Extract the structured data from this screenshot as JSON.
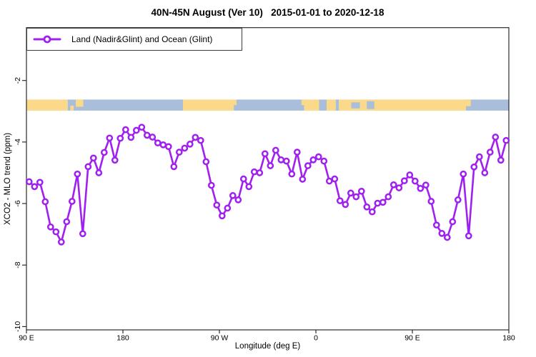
{
  "title": "40N-45N August (Ver 10)   2015-01-01 to 2020-12-18",
  "legend": {
    "label": "Land (Nadir&Glint) and Ocean (Glint)"
  },
  "axes": {
    "xlabel": "Longitude (deg E)",
    "ylabel": "XCO2 - MLO trend (ppm)"
  },
  "colors": {
    "series": "#A020F0",
    "marker_fill": "#FFFFFF",
    "land": "#FAD98B",
    "ocean": "#A8BEDA",
    "axis": "#2B2B2B",
    "text": "#000000"
  },
  "chart_data": {
    "type": "line",
    "title": "40N-45N August (Ver 10)   2015-01-01 to 2020-12-18",
    "xlabel": "Longitude (deg E)",
    "ylabel": "XCO2 - MLO trend (ppm)",
    "legend_position": "topleft",
    "grid": false,
    "markers": "open-circle",
    "xlim": [
      90,
      540
    ],
    "ylim": [
      -10.1,
      -0.3
    ],
    "x_ticks": [
      90,
      180,
      270,
      360,
      450,
      540
    ],
    "x_tick_labels": [
      "90 E",
      "180",
      "90 W",
      "0",
      "90 E",
      "180"
    ],
    "y_ticks": [
      -2,
      -4,
      -6,
      -8,
      -10
    ],
    "y_tick_labels": [
      "-2",
      "-4",
      "-6",
      "-8",
      "-10"
    ],
    "series": [
      {
        "name": "Land (Nadir&Glint) and Ocean (Glint)",
        "color": "#A020F0",
        "x": [
          92.5,
          97.5,
          102.5,
          107.5,
          112.5,
          117.5,
          122.5,
          127.5,
          132.5,
          137.5,
          142.5,
          147.5,
          152.5,
          157.5,
          162.5,
          167.5,
          172.5,
          177.5,
          182.5,
          187.5,
          192.5,
          197.5,
          202.5,
          207.5,
          212.5,
          217.5,
          222.5,
          227.5,
          232.5,
          237.5,
          242.5,
          247.5,
          252.5,
          257.5,
          262.5,
          267.5,
          272.5,
          277.5,
          282.5,
          287.5,
          292.5,
          297.5,
          302.5,
          307.5,
          312.5,
          317.5,
          322.5,
          327.5,
          332.5,
          337.5,
          342.5,
          347.5,
          352.5,
          357.5,
          362.5,
          367.5,
          372.5,
          377.5,
          382.5,
          387.5,
          392.5,
          397.5,
          402.5,
          407.5,
          412.5,
          417.5,
          422.5,
          427.5,
          432.5,
          437.5,
          442.5,
          447.5,
          452.5,
          457.5,
          462.5,
          467.5,
          472.5,
          477.5,
          482.5,
          487.5,
          492.5,
          497.5,
          502.5,
          507.5,
          512.5,
          517.5,
          522.5,
          527.5,
          532.5,
          537.5
        ],
        "values": [
          -5.29,
          -5.45,
          -5.31,
          -5.94,
          -6.76,
          -6.92,
          -7.25,
          -6.59,
          -5.93,
          -5.04,
          -6.98,
          -4.8,
          -4.52,
          -5.0,
          -4.34,
          -3.87,
          -4.59,
          -3.88,
          -3.6,
          -3.85,
          -3.62,
          -3.52,
          -3.78,
          -3.84,
          -4.03,
          -4.09,
          -4.15,
          -4.8,
          -4.33,
          -4.2,
          -4.07,
          -3.85,
          -3.95,
          -4.64,
          -5.41,
          -6.05,
          -6.4,
          -6.15,
          -5.74,
          -5.88,
          -5.2,
          -5.45,
          -4.97,
          -5.0,
          -4.38,
          -4.77,
          -4.27,
          -4.58,
          -4.62,
          -5.04,
          -4.33,
          -5.21,
          -4.77,
          -4.58,
          -4.48,
          -4.62,
          -5.27,
          -5.2,
          -5.91,
          -6.03,
          -5.66,
          -5.78,
          -5.6,
          -6.11,
          -6.27,
          -5.99,
          -5.96,
          -5.78,
          -5.39,
          -5.49,
          -5.26,
          -5.07,
          -5.27,
          -5.51,
          -5.4,
          -5.93,
          -6.7,
          -6.97,
          -7.1,
          -6.59,
          -5.88,
          -5.04,
          -7.05,
          -4.81,
          -4.48,
          -5.0,
          -4.33,
          -3.84,
          -4.59,
          -3.95
        ]
      }
    ],
    "map_strip": {
      "description": "land/ocean band across 40N-45N",
      "value_range_ppm": [
        -2.62,
        -2.98
      ],
      "land_color": "#FAD98B",
      "ocean_color": "#A8BEDA",
      "segments": [
        {
          "from": 90,
          "to": 128.5,
          "surface": "land"
        },
        {
          "from": 128.5,
          "to": 236,
          "surface": "ocean"
        },
        {
          "from": 236,
          "to": 286,
          "surface": "land"
        },
        {
          "from": 286,
          "to": 349,
          "surface": "ocean"
        },
        {
          "from": 349,
          "to": 363,
          "surface": "land"
        },
        {
          "from": 363,
          "to": 370,
          "surface": "ocean"
        },
        {
          "from": 370,
          "to": 378.5,
          "surface": "land"
        },
        {
          "from": 378.5,
          "to": 381.5,
          "surface": "ocean"
        },
        {
          "from": 381.5,
          "to": 500,
          "surface": "land"
        },
        {
          "from": 500,
          "to": 540,
          "surface": "ocean"
        }
      ],
      "patches": [
        {
          "from": 136,
          "to": 143,
          "surface": "land",
          "y0": 0,
          "y1": 0.65
        },
        {
          "from": 131,
          "to": 134,
          "surface": "land",
          "y0": 0.55,
          "y1": 1
        },
        {
          "from": 233.5,
          "to": 236,
          "surface": "ocean",
          "y0": 0,
          "y1": 0.45
        },
        {
          "from": 283.5,
          "to": 286,
          "surface": "ocean",
          "y0": 0.5,
          "y1": 1
        },
        {
          "from": 346.5,
          "to": 349,
          "surface": "land",
          "y0": 0,
          "y1": 0.5
        },
        {
          "from": 393,
          "to": 401,
          "surface": "ocean",
          "y0": 0.25,
          "y1": 0.8
        },
        {
          "from": 407.5,
          "to": 414.5,
          "surface": "ocean",
          "y0": 0.15,
          "y1": 0.85
        },
        {
          "from": 500,
          "to": 504.5,
          "surface": "land",
          "y0": 0,
          "y1": 0.6
        }
      ]
    }
  }
}
